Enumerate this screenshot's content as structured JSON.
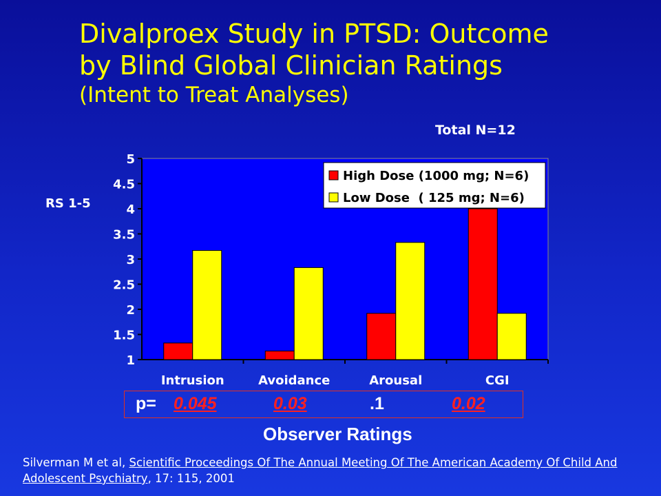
{
  "title": {
    "line1": "Divalproex Study in PTSD: Outcome",
    "line2": "by Blind Global Clinician Ratings",
    "line3": "(Intent to Treat Analyses)"
  },
  "total_n": "Total N=12",
  "y_axis_label": "RS 1-5",
  "p_values": {
    "prefix": "p=",
    "items": [
      {
        "text": "0.045",
        "significant": true
      },
      {
        "text": "0.03",
        "significant": true
      },
      {
        "text": ".1",
        "significant": false
      },
      {
        "text": "0.02",
        "significant": true
      }
    ]
  },
  "x_axis_title": "Observer Ratings",
  "citation": {
    "authors": "Silverman M et al, ",
    "source": "Scientific Proceedings Of The Annual Meeting Of The American Academy Of Child And Adolescent Psychiatry",
    "details": ", 17: 115,  2001"
  },
  "colors": {
    "high_dose": "#ff0000",
    "low_dose": "#ffff00",
    "plot_bg": "#0000ff",
    "text": "#ffffff",
    "title": "#ffff00"
  },
  "chart_data": {
    "type": "bar",
    "categories": [
      "Intrusion",
      "Avoidance",
      "Arousal",
      "CGI"
    ],
    "series": [
      {
        "name": "High Dose (1000 mg; N=6)",
        "values": [
          1.33,
          1.17,
          1.92,
          4.0
        ]
      },
      {
        "name": "Low Dose  ( 125 mg; N=6)",
        "values": [
          3.17,
          2.83,
          3.33,
          1.92
        ]
      }
    ],
    "yticks": [
      "1",
      "1.5",
      "2",
      "2.5",
      "3",
      "3.5",
      "4",
      "4.5",
      "5"
    ],
    "ylim": [
      1,
      5
    ],
    "legend_position": "top-right",
    "grid": false
  }
}
